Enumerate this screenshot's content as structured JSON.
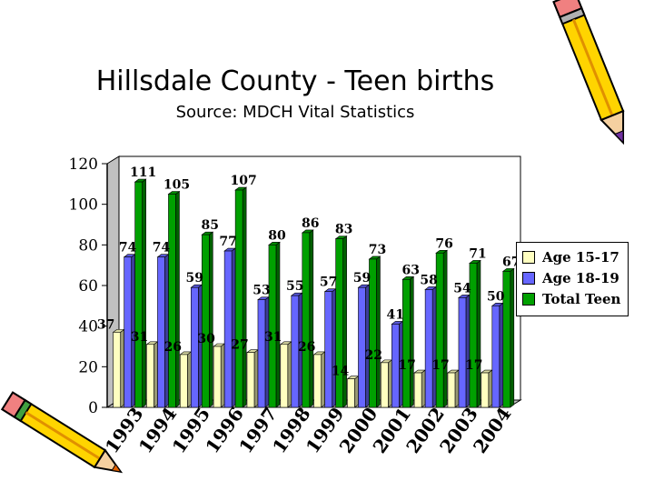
{
  "title": "Hillsdale County - Teen births",
  "subtitle": "Source: MDCH Vital Statistics",
  "colors": {
    "age_15_17": "#FFFFC0",
    "age_18_19": "#6666FF",
    "total_teen": "#00A000",
    "frame": "#C0C0C0"
  },
  "icons": [
    "pencil-icon-top-right",
    "pencil-icon-bottom-left"
  ],
  "chart_data": {
    "type": "bar",
    "categories": [
      "1993",
      "1994",
      "1995",
      "1996",
      "1997",
      "1998",
      "1999",
      "2000",
      "2001",
      "2002",
      "2003",
      "2004"
    ],
    "series": [
      {
        "name": "Age 15-17",
        "values": [
          37,
          31,
          26,
          30,
          27,
          31,
          26,
          14,
          22,
          17,
          17,
          17
        ]
      },
      {
        "name": "Age 18-19",
        "values": [
          74,
          74,
          59,
          77,
          53,
          55,
          57,
          59,
          41,
          58,
          54,
          50
        ]
      },
      {
        "name": "Total Teen",
        "values": [
          111,
          105,
          85,
          107,
          80,
          86,
          83,
          73,
          63,
          76,
          71,
          67
        ]
      }
    ],
    "y_ticks": [
      "0",
      "20",
      "40",
      "60",
      "80",
      "100",
      "120"
    ],
    "ylim": [
      0,
      120
    ],
    "grid": false,
    "legend": "right"
  }
}
